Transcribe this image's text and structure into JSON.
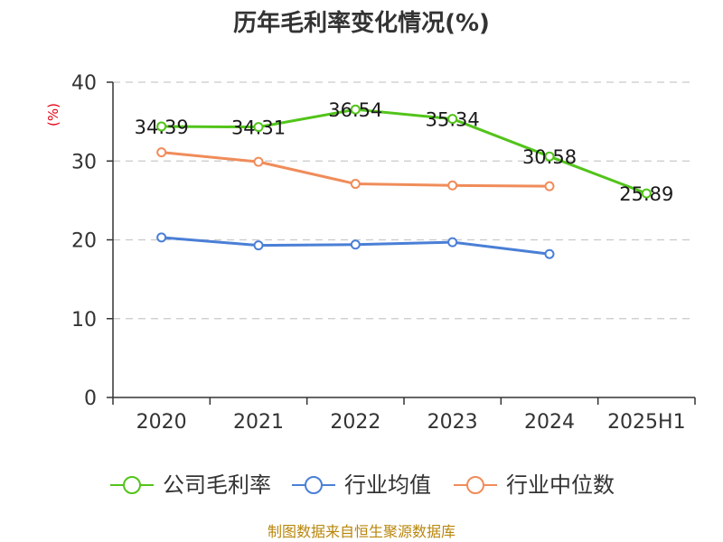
{
  "chart_data": {
    "type": "line",
    "title": "历年毛利率变化情况(%)",
    "ylabel": "(%)",
    "categories": [
      "2020",
      "2021",
      "2022",
      "2023",
      "2024",
      "2025H1"
    ],
    "ylim": [
      0,
      40
    ],
    "yticks": [
      0,
      10,
      20,
      30,
      40
    ],
    "grid": true,
    "legend_position": "bottom",
    "series": [
      {
        "name": "公司毛利率",
        "color": "#52c41a",
        "values": [
          34.39,
          34.31,
          36.54,
          35.34,
          30.58,
          25.89
        ],
        "labels": [
          "34.39",
          "34.31",
          "36.54",
          "35.34",
          "30.58",
          "25.89"
        ]
      },
      {
        "name": "行业均值",
        "color": "#4a7fd6",
        "values": [
          20.3,
          19.3,
          19.4,
          19.7,
          18.2,
          null
        ]
      },
      {
        "name": "行业中位数",
        "color": "#f08c5a",
        "values": [
          31.1,
          29.9,
          27.1,
          26.9,
          26.8,
          null
        ]
      }
    ]
  },
  "footer": {
    "source": "制图数据来自恒生聚源数据库"
  }
}
